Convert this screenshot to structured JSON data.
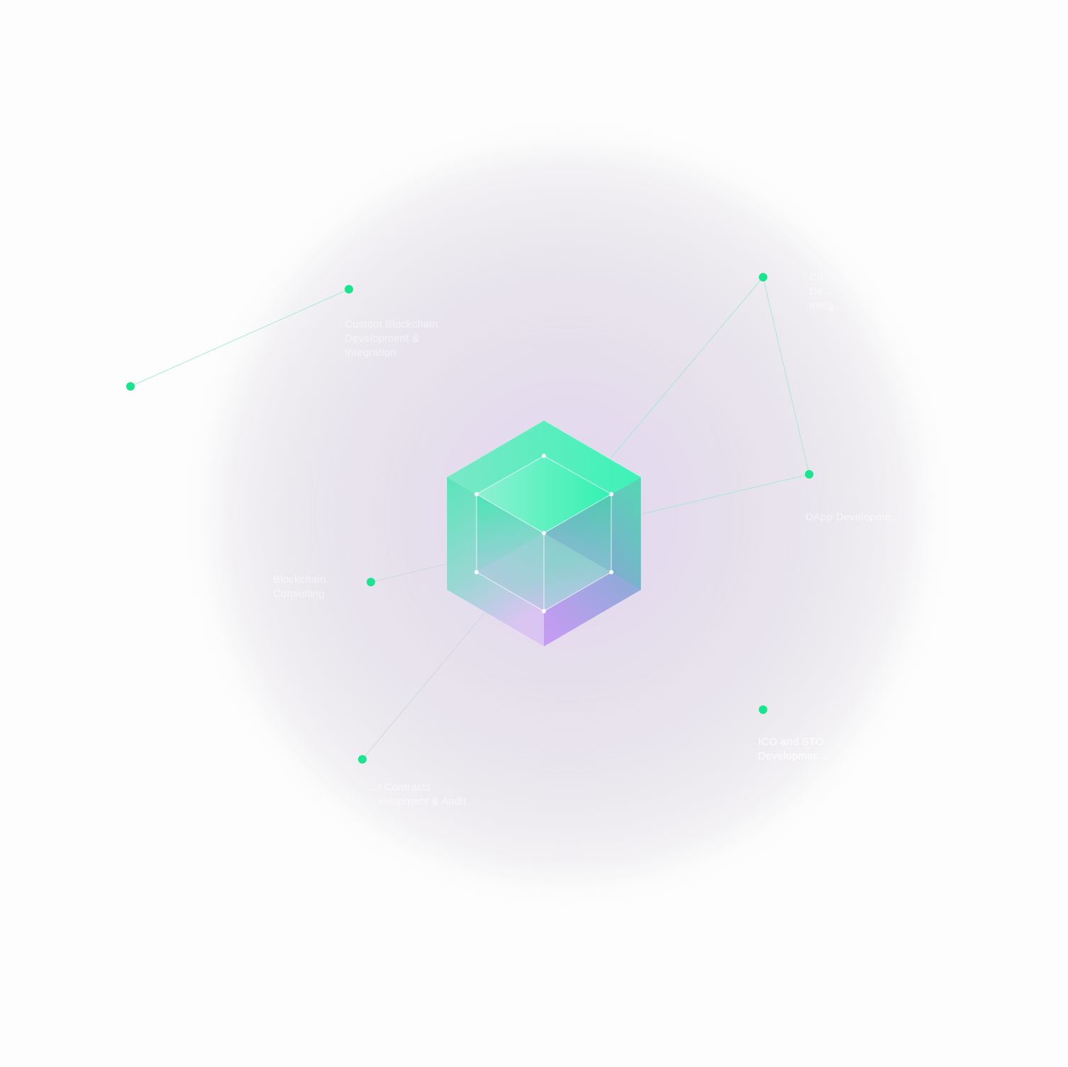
{
  "colors": {
    "background": "#fdfdfd",
    "node": "#19e58f",
    "connector": "#9fe9d3",
    "label_text": "#ffffff",
    "cube_top": "#3df5b1",
    "cube_bottom": "#cf9df5"
  },
  "nodes": [
    {
      "id": "custom-blockchain",
      "label": "Custom Blockchain\nDevelopment &\nIntegration"
    },
    {
      "id": "top-right",
      "label": "Cu...\nDe...\nInteg..."
    },
    {
      "id": "dapp",
      "label": "DApp Developme..."
    },
    {
      "id": "consulting",
      "label": "Blockchain\nConsulting"
    },
    {
      "id": "ico-sto",
      "label": "ICO and STO\nDevelopmen..."
    },
    {
      "id": "smart-contracts",
      "label": "...t Contracts\n...velopment & Audit"
    }
  ],
  "center_icon": "glass-cube-icon"
}
